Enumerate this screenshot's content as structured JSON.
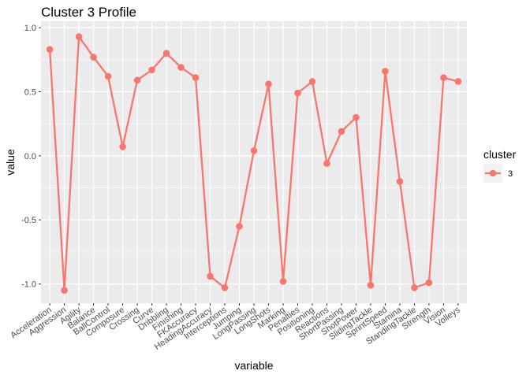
{
  "chart_data": {
    "type": "line",
    "title": "Cluster 3 Profile",
    "xlabel": "variable",
    "ylabel": "value",
    "ylim": [
      -1.15,
      1.05
    ],
    "yticks": [
      -1.0,
      -0.5,
      0.0,
      0.5,
      1.0
    ],
    "ytick_labels": [
      "-1.0",
      "-0.5",
      "0.0",
      "0.5",
      "1.0"
    ],
    "grid": true,
    "legend_position": "right",
    "legend": {
      "title": "cluster",
      "entries": [
        "3"
      ]
    },
    "color": "#F8766D",
    "categories": [
      "Acceleration",
      "Aggression",
      "Agility",
      "Balance",
      "BallControl",
      "Composure",
      "Crossing",
      "Curve",
      "Dribbling",
      "Finishing",
      "FKAccuracy",
      "HeadingAccuracy",
      "Interceptions",
      "Jumping",
      "LongPassing",
      "LongShots",
      "Marking",
      "Penalties",
      "Positioning",
      "Reactions",
      "ShortPassing",
      "ShotPower",
      "SlidingTackle",
      "SprintSpeed",
      "Stamina",
      "StandingTackle",
      "Strength",
      "Vision",
      "Volleys"
    ],
    "series": [
      {
        "name": "3",
        "values": [
          0.83,
          -1.05,
          0.93,
          0.77,
          0.62,
          0.07,
          0.59,
          0.67,
          0.8,
          0.69,
          0.61,
          -0.94,
          -1.03,
          -0.55,
          0.04,
          0.56,
          -0.98,
          0.49,
          0.58,
          -0.06,
          0.19,
          0.3,
          -1.01,
          0.66,
          -0.2,
          -1.03,
          -0.99,
          0.61,
          0.58
        ]
      }
    ]
  }
}
